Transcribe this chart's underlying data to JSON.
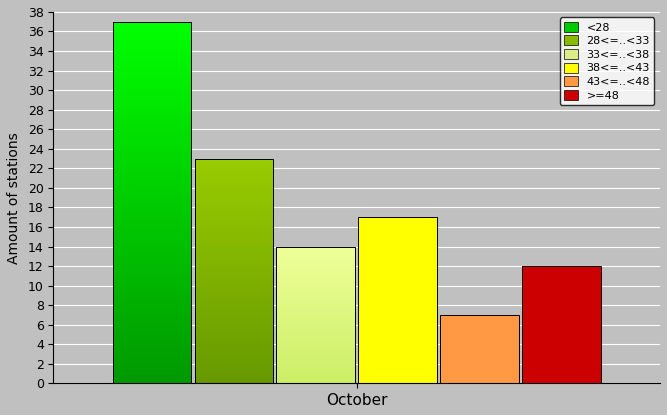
{
  "bars": [
    {
      "label": "<28",
      "value": 37,
      "color_top": "#00ff00",
      "color_bot": "#009900"
    },
    {
      "label": "28<=..<33",
      "value": 23,
      "color_top": "#99cc00",
      "color_bot": "#669900"
    },
    {
      "label": "33<=..<38",
      "value": 14,
      "color_top": "#eeff99",
      "color_bot": "#ccee66"
    },
    {
      "label": "38<=..<43",
      "value": 17,
      "color_top": "#ffff00",
      "color_bot": "#ffff00"
    },
    {
      "label": "43<=..<48",
      "value": 7,
      "color_top": "#ff9944",
      "color_bot": "#ff9944"
    },
    {
      "label": ">=48",
      "value": 12,
      "color_top": "#cc0000",
      "color_bot": "#cc0000"
    }
  ],
  "legend_colors": [
    "#00cc00",
    "#88bb00",
    "#ddee88",
    "#ffff00",
    "#ff9944",
    "#cc0000"
  ],
  "ylabel": "Amount of stations",
  "xlabel": "October",
  "ylim": [
    0,
    38
  ],
  "yticks": [
    0,
    2,
    4,
    6,
    8,
    10,
    12,
    14,
    16,
    18,
    20,
    22,
    24,
    26,
    28,
    30,
    32,
    34,
    36,
    38
  ],
  "bg_color": "#c0c0c0",
  "bar_width": 0.13,
  "n_bars": 6
}
